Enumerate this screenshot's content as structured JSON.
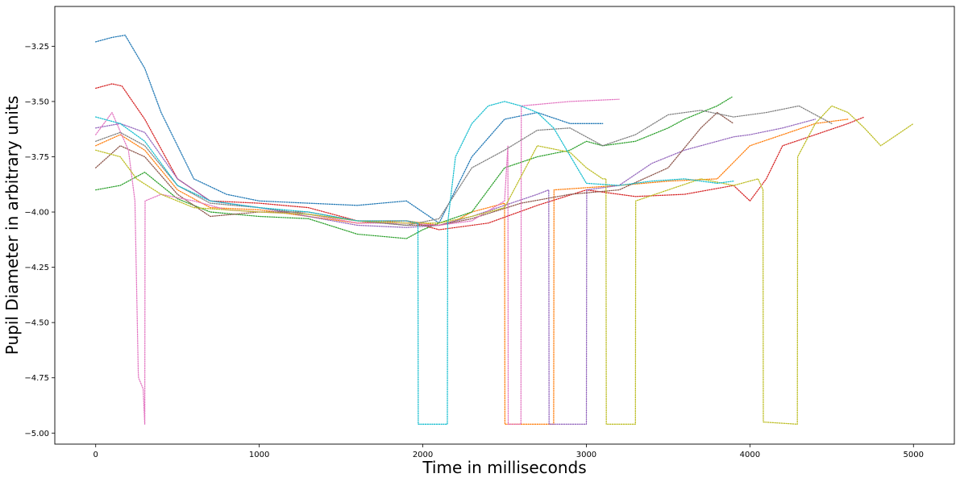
{
  "chart_data": {
    "type": "line",
    "title": "",
    "xlabel": "Time in milliseconds",
    "ylabel": "Pupil Diameter in arbitrary units",
    "xlim": [
      -250,
      5250
    ],
    "ylim": [
      -5.05,
      -3.07
    ],
    "xticks": [
      0,
      1000,
      2000,
      3000,
      4000,
      5000
    ],
    "yticks": [
      -5.0,
      -4.75,
      -4.5,
      -4.25,
      -4.0,
      -3.75,
      -3.5,
      -3.25
    ],
    "xtick_labels": [
      "0",
      "1000",
      "2000",
      "3000",
      "4000",
      "5000"
    ],
    "ytick_labels": [
      "−5.00",
      "−4.75",
      "−4.50",
      "−4.25",
      "−4.00",
      "−3.75",
      "−3.50",
      "−3.25"
    ],
    "grid": false,
    "legend": "none",
    "line_style": "dotted",
    "series": [
      {
        "color": "#1f77b4",
        "x": [
          0,
          100,
          180,
          300,
          400,
          600,
          800,
          1000,
          1300,
          1600,
          1900,
          2100,
          2300,
          2500,
          2700,
          2900,
          3000,
          3100
        ],
        "y": [
          -3.23,
          -3.21,
          -3.2,
          -3.35,
          -3.55,
          -3.85,
          -3.92,
          -3.95,
          -3.96,
          -3.97,
          -3.95,
          -4.05,
          -3.75,
          -3.58,
          -3.55,
          -3.6,
          -3.6,
          -3.6
        ]
      },
      {
        "color": "#ff7f0e",
        "x": [
          0,
          150,
          300,
          500,
          700,
          1000,
          1300,
          1600,
          1900,
          2100,
          2200,
          2300,
          2400,
          2500,
          2502,
          2800,
          2802,
          3200,
          3500,
          3800,
          4000,
          4200,
          4400,
          4600
        ],
        "y": [
          -3.7,
          -3.65,
          -3.72,
          -3.9,
          -3.98,
          -3.99,
          -4.02,
          -4.05,
          -4.04,
          -4.06,
          -4.04,
          -4.0,
          -3.98,
          -3.96,
          -4.96,
          -4.96,
          -3.9,
          -3.88,
          -3.86,
          -3.85,
          -3.7,
          -3.65,
          -3.6,
          -3.58
        ]
      },
      {
        "color": "#2ca02c",
        "x": [
          0,
          150,
          300,
          500,
          700,
          1000,
          1300,
          1600,
          1900,
          2000,
          2100,
          2300,
          2500,
          2700,
          2900,
          3000,
          3100,
          3300,
          3500,
          3600,
          3700,
          3800,
          3890
        ],
        "y": [
          -3.9,
          -3.88,
          -3.82,
          -3.94,
          -4.0,
          -4.02,
          -4.03,
          -4.1,
          -4.12,
          -4.08,
          -4.05,
          -4.0,
          -3.8,
          -3.75,
          -3.72,
          -3.68,
          -3.7,
          -3.68,
          -3.62,
          -3.58,
          -3.55,
          -3.52,
          -3.48
        ]
      },
      {
        "color": "#d62728",
        "x": [
          0,
          100,
          160,
          300,
          500,
          700,
          1000,
          1300,
          1600,
          1900,
          2100,
          2400,
          2700,
          3000,
          3300,
          3600,
          3900,
          4000,
          4100,
          4200,
          4400,
          4600,
          4700
        ],
        "y": [
          -3.44,
          -3.42,
          -3.43,
          -3.58,
          -3.85,
          -3.95,
          -3.96,
          -3.98,
          -4.04,
          -4.04,
          -4.08,
          -4.05,
          -3.97,
          -3.9,
          -3.93,
          -3.92,
          -3.88,
          -3.95,
          -3.85,
          -3.7,
          -3.65,
          -3.6,
          -3.57
        ]
      },
      {
        "color": "#9467bd",
        "x": [
          0,
          150,
          300,
          500,
          700,
          1000,
          1300,
          1600,
          1900,
          2100,
          2300,
          2500,
          2700,
          2770,
          2772,
          3000,
          3002,
          3200,
          3400,
          3600,
          3700,
          3800,
          3900,
          4000,
          4200,
          4400
        ],
        "y": [
          -3.62,
          -3.6,
          -3.64,
          -3.85,
          -3.95,
          -3.98,
          -4.02,
          -4.06,
          -4.07,
          -4.06,
          -4.02,
          -3.97,
          -3.92,
          -3.9,
          -4.96,
          -4.96,
          -3.9,
          -3.88,
          -3.78,
          -3.72,
          -3.7,
          -3.68,
          -3.66,
          -3.65,
          -3.62,
          -3.58
        ]
      },
      {
        "color": "#8c564b",
        "x": [
          0,
          150,
          300,
          500,
          700,
          1000,
          1300,
          1600,
          1900,
          2100,
          2300,
          2600,
          2900,
          3200,
          3500,
          3700,
          3800,
          3900
        ],
        "y": [
          -3.8,
          -3.7,
          -3.75,
          -3.92,
          -4.02,
          -4.0,
          -4.0,
          -4.04,
          -4.06,
          -4.06,
          -4.03,
          -3.96,
          -3.92,
          -3.9,
          -3.8,
          -3.62,
          -3.55,
          -3.6
        ]
      },
      {
        "color": "#e377c2",
        "x": [
          0,
          100,
          200,
          240,
          260,
          262,
          290,
          300,
          302,
          400,
          600,
          800,
          1000,
          1300,
          1600,
          1900,
          2100,
          2300,
          2500,
          2520,
          2522,
          2600,
          2602,
          2900,
          3200
        ],
        "y": [
          -3.65,
          -3.55,
          -3.72,
          -3.95,
          -4.72,
          -4.75,
          -4.8,
          -4.96,
          -3.95,
          -3.92,
          -3.95,
          -3.99,
          -4.0,
          -4.01,
          -4.05,
          -4.05,
          -4.06,
          -4.04,
          -3.95,
          -3.7,
          -4.96,
          -4.96,
          -3.52,
          -3.5,
          -3.49
        ]
      },
      {
        "color": "#7f7f7f",
        "x": [
          0,
          150,
          300,
          500,
          700,
          1000,
          1300,
          1600,
          1900,
          2100,
          2300,
          2500,
          2700,
          2900,
          3100,
          3300,
          3500,
          3700,
          3900,
          4100,
          4300,
          4500
        ],
        "y": [
          -3.68,
          -3.64,
          -3.7,
          -3.88,
          -3.96,
          -3.98,
          -4.01,
          -4.04,
          -4.06,
          -4.03,
          -3.8,
          -3.72,
          -3.63,
          -3.62,
          -3.7,
          -3.65,
          -3.56,
          -3.54,
          -3.57,
          -3.55,
          -3.52,
          -3.6
        ]
      },
      {
        "color": "#bcbd22",
        "x": [
          0,
          150,
          250,
          400,
          600,
          800,
          1000,
          1300,
          1600,
          1900,
          2100,
          2300,
          2500,
          2700,
          2900,
          3000,
          3100,
          3120,
          3122,
          3300,
          3302,
          3500,
          3700,
          3900,
          4050,
          4080,
          4082,
          4290,
          4292,
          4400,
          4500,
          4600,
          4700,
          4800,
          4900,
          5000
        ],
        "y": [
          -3.72,
          -3.75,
          -3.85,
          -3.92,
          -3.98,
          -3.99,
          -4.0,
          -4.01,
          -4.04,
          -4.05,
          -4.05,
          -4.02,
          -3.98,
          -3.7,
          -3.73,
          -3.8,
          -3.85,
          -3.85,
          -4.96,
          -4.96,
          -3.95,
          -3.9,
          -3.85,
          -3.88,
          -3.85,
          -3.9,
          -4.95,
          -4.96,
          -3.75,
          -3.6,
          -3.52,
          -3.55,
          -3.62,
          -3.7,
          -3.65,
          -3.6
        ]
      },
      {
        "color": "#17becf",
        "x": [
          0,
          150,
          300,
          500,
          700,
          1000,
          1300,
          1600,
          1900,
          1970,
          1972,
          2150,
          2152,
          2200,
          2300,
          2400,
          2500,
          2600,
          2700,
          2800,
          3000,
          3200,
          3400,
          3600,
          3800,
          3900
        ],
        "y": [
          -3.57,
          -3.6,
          -3.68,
          -3.88,
          -3.95,
          -3.98,
          -4.0,
          -4.04,
          -4.04,
          -4.05,
          -4.96,
          -4.96,
          -4.05,
          -3.75,
          -3.6,
          -3.52,
          -3.5,
          -3.52,
          -3.55,
          -3.62,
          -3.87,
          -3.88,
          -3.86,
          -3.85,
          -3.87,
          -3.86
        ]
      }
    ]
  }
}
